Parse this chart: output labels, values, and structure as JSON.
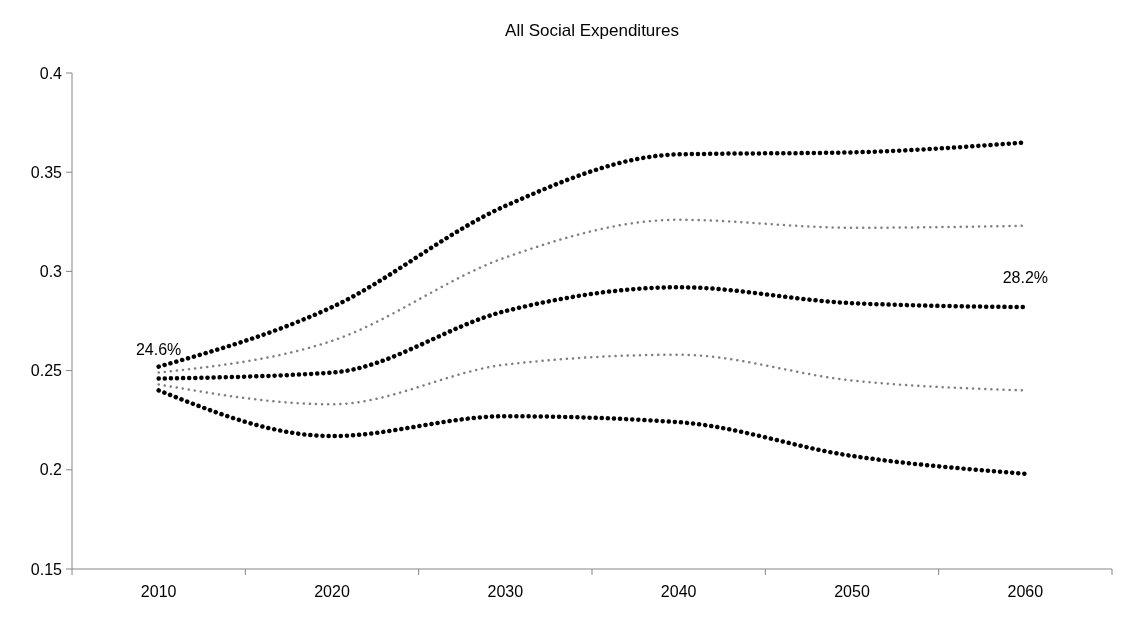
{
  "chart_data": {
    "type": "line",
    "title": "All Social Expenditures",
    "categories": [
      "2010",
      "2020",
      "2030",
      "2040",
      "2050",
      "2060"
    ],
    "series": [
      {
        "color": "#000000",
        "values": [
          0.252,
          0.282,
          0.333,
          0.359,
          0.36,
          0.365
        ]
      },
      {
        "color": "#808080",
        "values": [
          0.249,
          0.265,
          0.307,
          0.326,
          0.322,
          0.323
        ]
      },
      {
        "color": "#000000",
        "values": [
          0.246,
          0.249,
          0.28,
          0.292,
          0.284,
          0.282
        ]
      },
      {
        "color": "#808080",
        "values": [
          0.243,
          0.233,
          0.253,
          0.258,
          0.245,
          0.24
        ]
      },
      {
        "color": "#000000",
        "values": [
          0.24,
          0.217,
          0.227,
          0.224,
          0.207,
          0.198
        ]
      }
    ],
    "ylim": [
      0.15,
      0.4
    ],
    "yticks": [
      0.15,
      0.2,
      0.25,
      0.3,
      0.35,
      0.4
    ],
    "grid": false,
    "line_style": "dotted",
    "annotations": [
      {
        "text": "24.6%",
        "x": "2010",
        "y": 0.246
      },
      {
        "text": "28.2%",
        "x": "2060",
        "y": 0.282
      }
    ]
  }
}
